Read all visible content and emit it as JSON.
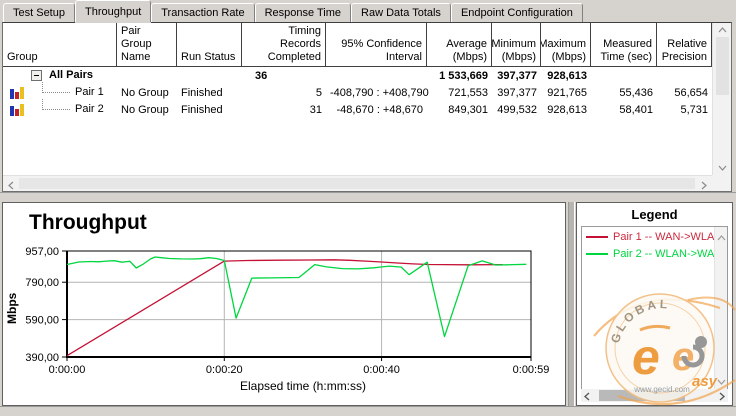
{
  "tabs": [
    {
      "label": "Test Setup",
      "active": false
    },
    {
      "label": "Throughput",
      "active": true
    },
    {
      "label": "Transaction Rate",
      "active": false
    },
    {
      "label": "Response Time",
      "active": false
    },
    {
      "label": "Raw Data Totals",
      "active": false
    },
    {
      "label": "Endpoint Configuration",
      "active": false
    }
  ],
  "table": {
    "columns": {
      "group": "Group",
      "pair_group": "Pair Group Name",
      "run_status": "Run Status",
      "timing": "Timing Records Completed",
      "ci": "95% Confidence Interval",
      "average": "Average (Mbps)",
      "minimum": "Minimum (Mbps)",
      "maximum": "Maximum (Mbps)",
      "time": "Measured Time (sec)",
      "precision": "Relative Precision"
    },
    "rows": {
      "all": {
        "group": "All Pairs",
        "timing": "36",
        "average": "1 533,669",
        "minimum": "397,377",
        "maximum": "928,613"
      },
      "pair1": {
        "group": "Pair 1",
        "pair_group": "No Group",
        "status": "Finished",
        "timing": "5",
        "ci": "-408,790 : +408,790",
        "average": "721,553",
        "minimum": "397,377",
        "maximum": "921,765",
        "time": "55,436",
        "precision": "56,654"
      },
      "pair2": {
        "group": "Pair 2",
        "pair_group": "No Group",
        "status": "Finished",
        "timing": "31",
        "ci": "-48,670 : +48,670",
        "average": "849,301",
        "minimum": "499,532",
        "maximum": "928,613",
        "time": "58,401",
        "precision": "5,731"
      }
    }
  },
  "chart_data": {
    "type": "line",
    "title": "Throughput",
    "ylabel": "Mbps",
    "xlabel": "Elapsed time (h:mm:ss)",
    "ylim": [
      390,
      957
    ],
    "xlim_seconds": [
      0,
      59
    ],
    "ytick_values": [
      957,
      790,
      590,
      390
    ],
    "ytick_labels": [
      "957,00",
      "790,00",
      "590,00",
      "390,00"
    ],
    "xtick_values": [
      0,
      20,
      40,
      59
    ],
    "xtick_labels": [
      "0:00:00",
      "0:00:20",
      "0:00:40",
      "0:00:59"
    ],
    "grid_y": [
      790,
      590
    ],
    "grid_x": [
      20,
      40
    ],
    "legend_position": "right",
    "series": [
      {
        "name": "Pair 1 -- WAN->WLAN",
        "color": "#c41236",
        "points": [
          [
            0,
            397
          ],
          [
            20,
            903
          ],
          [
            23,
            906
          ],
          [
            27,
            908
          ],
          [
            31,
            909
          ],
          [
            34,
            910
          ],
          [
            36,
            907
          ],
          [
            38,
            903
          ],
          [
            40,
            898
          ],
          [
            42,
            893
          ],
          [
            44,
            888
          ],
          [
            46,
            885
          ],
          [
            48,
            884
          ],
          [
            51,
            883
          ],
          [
            55.4,
            884
          ]
        ]
      },
      {
        "name": "Pair 2 -- WLAN->WAN",
        "color": "#00d640",
        "points": [
          [
            0,
            885
          ],
          [
            1.5,
            898
          ],
          [
            3,
            901
          ],
          [
            4,
            899
          ],
          [
            5,
            903
          ],
          [
            6,
            905
          ],
          [
            7,
            897
          ],
          [
            8,
            902
          ],
          [
            8.8,
            866
          ],
          [
            9.6,
            884
          ],
          [
            10.6,
            914
          ],
          [
            11.2,
            925
          ],
          [
            12,
            921
          ],
          [
            13,
            917
          ],
          [
            14.5,
            915
          ],
          [
            16,
            914
          ],
          [
            17,
            916
          ],
          [
            18,
            921
          ],
          [
            19,
            917
          ],
          [
            20,
            906
          ],
          [
            21.5,
            598
          ],
          [
            23.5,
            812
          ],
          [
            26,
            813
          ],
          [
            29.5,
            815
          ],
          [
            31.5,
            884
          ],
          [
            33,
            872
          ],
          [
            35,
            863
          ],
          [
            37,
            861
          ],
          [
            39,
            867
          ],
          [
            41,
            876
          ],
          [
            42.5,
            871
          ],
          [
            43.5,
            830
          ],
          [
            45.8,
            897
          ],
          [
            48,
            499
          ],
          [
            51,
            878
          ],
          [
            52.8,
            904
          ],
          [
            54.5,
            882
          ],
          [
            56,
            883
          ],
          [
            58.4,
            886
          ]
        ]
      }
    ]
  },
  "legend": {
    "title": "Legend",
    "items": [
      {
        "label": "Pair 1 -- WAN->WLAN",
        "color": "#c41236",
        "text_color": "#cc2a3e"
      },
      {
        "label": "Pair 2 -- WLAN->WAN",
        "color": "#00d640",
        "text_color": "#00d640"
      }
    ]
  },
  "watermark": {
    "arc_text": "GLOBAL",
    "script_text": "asy",
    "site": "www.gecid.com"
  }
}
